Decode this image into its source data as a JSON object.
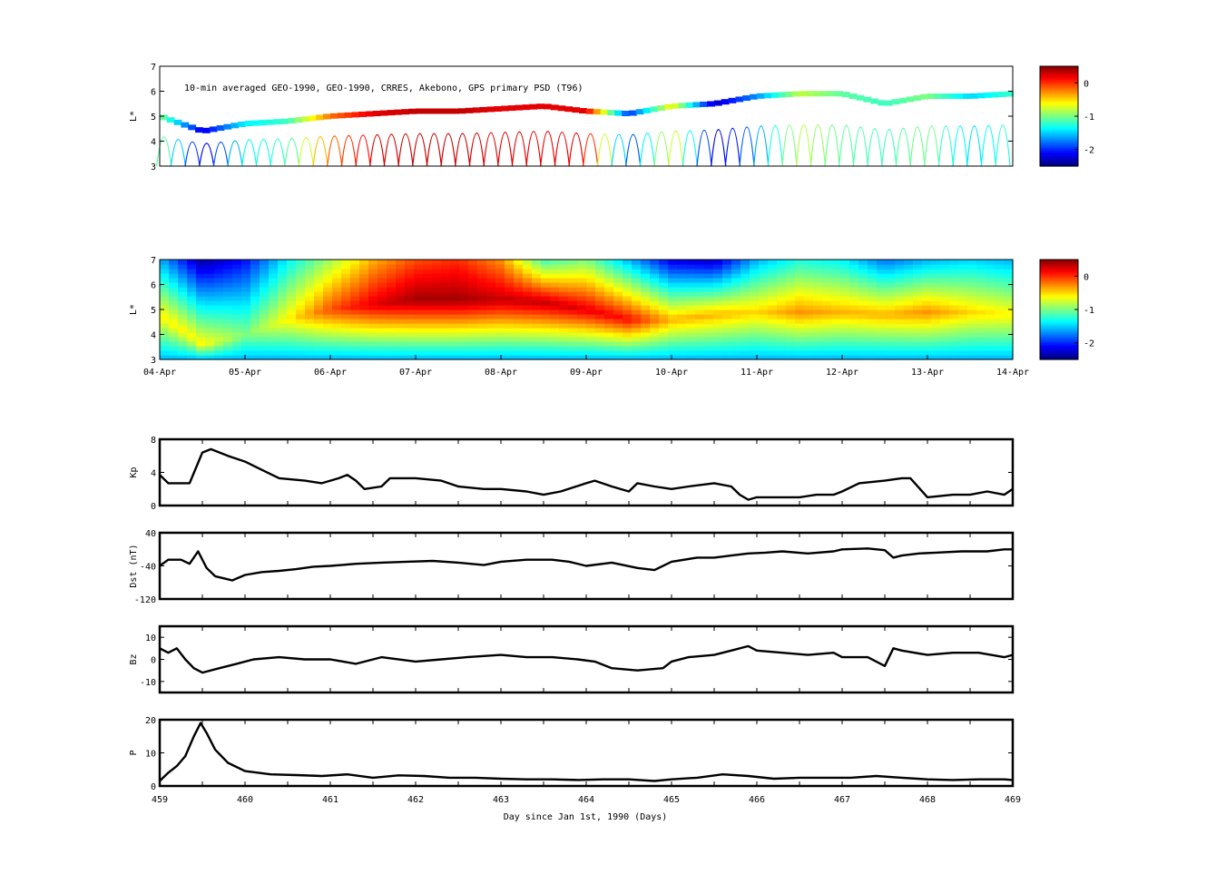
{
  "colors": {
    "axis": "#000000",
    "line": "#000000",
    "highlight": "#0a1a6e",
    "jet_low": "#00008f",
    "jet_high": "#800000"
  },
  "chart_data": [
    {
      "type": "heatmap",
      "id": "psd_observed",
      "annotation": "10-min averaged GEO-1990, GEO-1990, CRRES, Akebono, GPS  primary PSD (T96)",
      "ylabel": "L*",
      "ylim": [
        3,
        7
      ],
      "yticks": [
        3,
        4,
        5,
        6,
        7
      ],
      "xlim": [
        459,
        469
      ],
      "colorbar": {
        "range": [
          -2.5,
          0.5
        ],
        "ticks": [
          0,
          -1,
          -2
        ],
        "colormap": "jet"
      },
      "description_values": {
        "track_L": [
          [
            459.0,
            5.0,
            -1.0
          ],
          [
            459.5,
            4.4,
            -2.2
          ],
          [
            460.0,
            4.7,
            -1.4
          ],
          [
            460.5,
            4.8,
            -1.2
          ],
          [
            461.0,
            5.0,
            -0.2
          ],
          [
            461.5,
            5.1,
            0.2
          ],
          [
            462.0,
            5.2,
            0.3
          ],
          [
            462.5,
            5.2,
            0.3
          ],
          [
            463.0,
            5.3,
            0.2
          ],
          [
            463.5,
            5.4,
            0.2
          ],
          [
            464.0,
            5.2,
            0.2
          ],
          [
            464.5,
            5.1,
            -2.0
          ],
          [
            465.0,
            5.4,
            -0.6
          ],
          [
            465.5,
            5.5,
            -2.3
          ],
          [
            466.0,
            5.8,
            -1.7
          ],
          [
            466.5,
            5.9,
            -0.8
          ],
          [
            467.0,
            5.9,
            -1.1
          ],
          [
            467.5,
            5.5,
            -1.2
          ],
          [
            468.0,
            5.8,
            -1.0
          ],
          [
            468.5,
            5.8,
            -1.5
          ],
          [
            469.0,
            5.9,
            -1.2
          ]
        ]
      }
    },
    {
      "type": "heatmap",
      "id": "psd_assimilated",
      "ylabel": "L*",
      "ylim": [
        3,
        7
      ],
      "yticks": [
        3,
        4,
        5,
        6,
        7
      ],
      "xlim": [
        459,
        469
      ],
      "x_date_ticks": [
        "04-Apr",
        "05-Apr",
        "06-Apr",
        "07-Apr",
        "08-Apr",
        "09-Apr",
        "10-Apr",
        "11-Apr",
        "12-Apr",
        "13-Apr",
        "14-Apr"
      ],
      "colorbar": {
        "range": [
          -2.5,
          0.5
        ],
        "ticks": [
          0,
          -1,
          -2
        ],
        "colormap": "jet"
      },
      "profile_by_day": [
        {
          "day": 459.0,
          "peak_L": 4.8,
          "peak": -0.6,
          "outer": -1.6
        },
        {
          "day": 459.5,
          "peak_L": 3.6,
          "peak": -0.6,
          "outer": -2.4
        },
        {
          "day": 460.0,
          "peak_L": 4.0,
          "peak": -1.0,
          "outer": -2.1
        },
        {
          "day": 460.5,
          "peak_L": 4.6,
          "peak": -0.6,
          "outer": -1.4
        },
        {
          "day": 461.0,
          "peak_L": 5.0,
          "peak": -0.1,
          "outer": -0.9
        },
        {
          "day": 461.5,
          "peak_L": 5.2,
          "peak": 0.2,
          "outer": -0.4
        },
        {
          "day": 462.0,
          "peak_L": 5.4,
          "peak": 0.4,
          "outer": -0.1
        },
        {
          "day": 462.5,
          "peak_L": 5.4,
          "peak": 0.4,
          "outer": 0.0
        },
        {
          "day": 463.0,
          "peak_L": 5.4,
          "peak": 0.3,
          "outer": -0.3
        },
        {
          "day": 463.5,
          "peak_L": 5.3,
          "peak": 0.3,
          "outer": -1.2
        },
        {
          "day": 464.0,
          "peak_L": 5.0,
          "peak": 0.2,
          "outer": -1.0
        },
        {
          "day": 464.5,
          "peak_L": 4.6,
          "peak": 0.1,
          "outer": -1.6
        },
        {
          "day": 465.0,
          "peak_L": 4.6,
          "peak": -0.4,
          "outer": -2.2
        },
        {
          "day": 465.5,
          "peak_L": 4.8,
          "peak": -0.4,
          "outer": -2.3
        },
        {
          "day": 466.0,
          "peak_L": 4.9,
          "peak": -0.5,
          "outer": -1.6
        },
        {
          "day": 466.5,
          "peak_L": 4.9,
          "peak": -0.3,
          "outer": -1.3
        },
        {
          "day": 467.0,
          "peak_L": 4.9,
          "peak": -0.4,
          "outer": -1.4
        },
        {
          "day": 467.5,
          "peak_L": 4.8,
          "peak": -0.4,
          "outer": -1.8
        },
        {
          "day": 468.0,
          "peak_L": 4.9,
          "peak": -0.3,
          "outer": -1.6
        },
        {
          "day": 468.5,
          "peak_L": 4.9,
          "peak": -0.5,
          "outer": -1.5
        },
        {
          "day": 469.0,
          "peak_L": 4.8,
          "peak": -0.6,
          "outer": -1.6
        }
      ]
    },
    {
      "type": "line",
      "id": "kp",
      "ylabel": "Kp",
      "ylim": [
        0,
        8
      ],
      "yticks": [
        0,
        4,
        8
      ],
      "xlim": [
        459,
        469
      ],
      "series": [
        {
          "x": [
            459.0,
            459.1,
            459.35,
            459.5,
            459.6,
            459.8,
            460.0,
            460.2,
            460.4,
            460.7,
            460.9,
            461.1,
            461.2,
            461.3,
            461.4,
            461.6,
            461.7,
            462.0,
            462.3,
            462.5,
            462.8,
            463.0,
            463.3,
            463.5,
            463.7,
            464.0,
            464.1,
            464.3,
            464.5,
            464.6,
            464.8,
            465.0,
            465.2,
            465.5,
            465.7,
            465.8,
            465.9,
            466.0,
            466.3,
            466.5,
            466.7,
            466.9,
            467.0,
            467.2,
            467.5,
            467.7,
            467.8,
            468.0,
            468.3,
            468.5,
            468.7,
            468.9,
            469.0
          ],
          "values": [
            3.7,
            2.7,
            2.7,
            6.4,
            6.8,
            6.0,
            5.3,
            4.3,
            3.3,
            3.0,
            2.7,
            3.3,
            3.7,
            3.0,
            2.0,
            2.3,
            3.3,
            3.3,
            3.0,
            2.3,
            2.0,
            2.0,
            1.7,
            1.3,
            1.7,
            2.7,
            3.0,
            2.3,
            1.7,
            2.7,
            2.3,
            2.0,
            2.3,
            2.7,
            2.3,
            1.3,
            0.7,
            1.0,
            1.0,
            1.0,
            1.3,
            1.3,
            1.7,
            2.7,
            3.0,
            3.3,
            3.3,
            1.0,
            1.3,
            1.3,
            1.7,
            1.3,
            2.0
          ]
        }
      ]
    },
    {
      "type": "line",
      "id": "dst",
      "ylabel": "Dst (nT)",
      "ylim": [
        -120,
        40
      ],
      "yticks": [
        -120,
        -40,
        40
      ],
      "xlim": [
        459,
        469
      ],
      "series": [
        {
          "x": [
            459.0,
            459.1,
            459.25,
            459.35,
            459.45,
            459.55,
            459.65,
            459.75,
            459.85,
            460.0,
            460.2,
            460.4,
            460.6,
            460.8,
            461.0,
            461.3,
            461.6,
            461.9,
            462.2,
            462.5,
            462.8,
            463.0,
            463.3,
            463.6,
            463.8,
            464.0,
            464.3,
            464.6,
            464.8,
            465.0,
            465.3,
            465.5,
            465.7,
            465.9,
            466.1,
            466.3,
            466.6,
            466.9,
            467.0,
            467.3,
            467.5,
            467.6,
            467.7,
            467.9,
            468.1,
            468.4,
            468.7,
            468.9,
            469.0
          ],
          "values": [
            -40,
            -25,
            -25,
            -35,
            -5,
            -45,
            -65,
            -70,
            -75,
            -62,
            -55,
            -52,
            -48,
            -42,
            -40,
            -35,
            -32,
            -30,
            -28,
            -32,
            -38,
            -30,
            -25,
            -25,
            -30,
            -40,
            -32,
            -45,
            -50,
            -30,
            -20,
            -20,
            -15,
            -10,
            -8,
            -5,
            -10,
            -5,
            0,
            2,
            -2,
            -20,
            -15,
            -10,
            -8,
            -5,
            -5,
            0,
            0
          ]
        }
      ]
    },
    {
      "type": "line",
      "id": "bz",
      "ylabel": "Bz",
      "ylim": [
        -15,
        15
      ],
      "yticks": [
        -10,
        0,
        10
      ],
      "xlim": [
        459,
        469
      ],
      "series": [
        {
          "x": [
            459.0,
            459.1,
            459.2,
            459.3,
            459.4,
            459.5,
            459.7,
            459.9,
            460.1,
            460.4,
            460.7,
            461.0,
            461.3,
            461.6,
            462.0,
            462.3,
            462.6,
            463.0,
            463.3,
            463.6,
            463.9,
            464.1,
            464.3,
            464.6,
            464.9,
            465.0,
            465.2,
            465.5,
            465.7,
            465.9,
            466.0,
            466.3,
            466.6,
            466.9,
            467.0,
            467.3,
            467.5,
            467.6,
            467.7,
            468.0,
            468.3,
            468.6,
            468.9,
            469.0
          ],
          "values": [
            5,
            3,
            5,
            0,
            -4,
            -6,
            -4,
            -2,
            0,
            1,
            0,
            0,
            -2,
            1,
            -1,
            0,
            1,
            2,
            1,
            1,
            0,
            -1,
            -4,
            -5,
            -4,
            -1,
            1,
            2,
            4,
            6,
            4,
            3,
            2,
            3,
            1,
            1,
            -3,
            5,
            4,
            2,
            3,
            3,
            1,
            2
          ]
        }
      ]
    },
    {
      "type": "line",
      "id": "pressure",
      "ylabel": "P",
      "ylim": [
        0,
        20
      ],
      "yticks": [
        0,
        10,
        20
      ],
      "xlim": [
        459,
        469
      ],
      "xticks": [
        459,
        460,
        461,
        462,
        463,
        464,
        465,
        466,
        467,
        468,
        469
      ],
      "xlabel": "Day since Jan 1st, 1990 (Days)",
      "series": [
        {
          "x": [
            459.0,
            459.1,
            459.2,
            459.3,
            459.4,
            459.48,
            459.55,
            459.65,
            459.8,
            460.0,
            460.3,
            460.6,
            460.9,
            461.2,
            461.5,
            461.8,
            462.1,
            462.4,
            462.7,
            463.0,
            463.3,
            463.6,
            463.9,
            464.2,
            464.5,
            464.8,
            465.0,
            465.3,
            465.6,
            465.9,
            466.2,
            466.5,
            466.8,
            467.1,
            467.4,
            467.7,
            468.0,
            468.3,
            468.6,
            468.9,
            469.0
          ],
          "values": [
            1.5,
            4,
            6,
            9,
            15,
            19,
            16,
            11,
            7,
            4.5,
            3.5,
            3.3,
            3,
            3.5,
            2.5,
            3.2,
            3,
            2.5,
            2.5,
            2.2,
            2,
            2,
            1.8,
            2,
            2,
            1.5,
            2,
            2.5,
            3.5,
            3,
            2.2,
            2.5,
            2.5,
            2.5,
            3,
            2.5,
            2,
            1.8,
            2,
            2,
            1.8
          ]
        }
      ]
    }
  ]
}
